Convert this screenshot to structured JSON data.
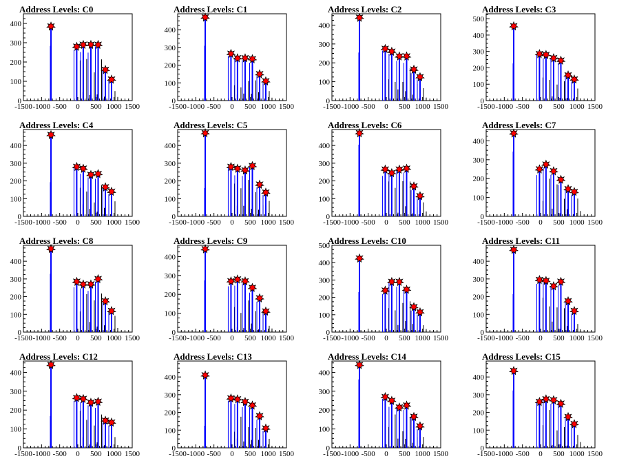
{
  "chart_data": [
    {
      "type": "bar",
      "title": "Address Levels: C0",
      "xlim": [
        -1500,
        1500
      ],
      "ylim": [
        0,
        450
      ],
      "yticks": [
        0,
        100,
        200,
        300,
        400
      ],
      "xticks": [
        "-1500",
        "-1000",
        "-500",
        "0",
        "500",
        "1000",
        "1500"
      ],
      "bar_color": "#0000ff",
      "marker_color": "#ff0000",
      "peaks": [
        {
          "x": -740,
          "y": 385
        },
        {
          "x": -30,
          "y": 280
        },
        {
          "x": 150,
          "y": 290
        },
        {
          "x": 360,
          "y": 290
        },
        {
          "x": 560,
          "y": 290
        },
        {
          "x": 760,
          "y": 160
        },
        {
          "x": 930,
          "y": 110
        }
      ]
    },
    {
      "type": "bar",
      "title": "Address Levels: C1",
      "xlim": [
        -1500,
        1500
      ],
      "ylim": [
        0,
        490
      ],
      "yticks": [
        0,
        100,
        200,
        300,
        400
      ],
      "xticks": [
        "-1500",
        "-1000",
        "-500",
        "0",
        "500",
        "1000",
        "1500"
      ],
      "bar_color": "#0000ff",
      "marker_color": "#ff0000",
      "peaks": [
        {
          "x": -740,
          "y": 470
        },
        {
          "x": -30,
          "y": 265
        },
        {
          "x": 150,
          "y": 240
        },
        {
          "x": 360,
          "y": 240
        },
        {
          "x": 560,
          "y": 235
        },
        {
          "x": 760,
          "y": 150
        },
        {
          "x": 930,
          "y": 110
        }
      ]
    },
    {
      "type": "bar",
      "title": "Address Levels: C2",
      "xlim": [
        -1500,
        1500
      ],
      "ylim": [
        0,
        460
      ],
      "yticks": [
        0,
        100,
        200,
        300,
        400
      ],
      "xticks": [
        "-1500",
        "-1000",
        "-500",
        "0",
        "500",
        "1000",
        "1500"
      ],
      "bar_color": "#0000ff",
      "marker_color": "#ff0000",
      "peaks": [
        {
          "x": -740,
          "y": 440
        },
        {
          "x": -30,
          "y": 275
        },
        {
          "x": 150,
          "y": 260
        },
        {
          "x": 360,
          "y": 235
        },
        {
          "x": 560,
          "y": 235
        },
        {
          "x": 760,
          "y": 165
        },
        {
          "x": 930,
          "y": 125
        }
      ]
    },
    {
      "type": "bar",
      "title": "Address Levels: C3",
      "xlim": [
        -1500,
        1500
      ],
      "ylim": [
        0,
        530
      ],
      "yticks": [
        0,
        100,
        200,
        300,
        400,
        500
      ],
      "xticks": [
        "-1500",
        "-1000",
        "-500",
        "0",
        "500",
        "1000",
        "1500"
      ],
      "bar_color": "#0000ff",
      "marker_color": "#ff0000",
      "peaks": [
        {
          "x": -740,
          "y": 455
        },
        {
          "x": -30,
          "y": 285
        },
        {
          "x": 150,
          "y": 280
        },
        {
          "x": 360,
          "y": 260
        },
        {
          "x": 560,
          "y": 245
        },
        {
          "x": 760,
          "y": 155
        },
        {
          "x": 930,
          "y": 130
        }
      ]
    },
    {
      "type": "bar",
      "title": "Address Levels: C4",
      "xlim": [
        -1500,
        1500
      ],
      "ylim": [
        0,
        490
      ],
      "yticks": [
        0,
        100,
        200,
        300,
        400
      ],
      "xticks": [
        "-1500",
        "-1000",
        "-500",
        "0",
        "500",
        "1000",
        "1500"
      ],
      "bar_color": "#0000ff",
      "marker_color": "#ff0000",
      "peaks": [
        {
          "x": -740,
          "y": 460
        },
        {
          "x": -30,
          "y": 280
        },
        {
          "x": 150,
          "y": 270
        },
        {
          "x": 360,
          "y": 235
        },
        {
          "x": 560,
          "y": 240
        },
        {
          "x": 760,
          "y": 165
        },
        {
          "x": 930,
          "y": 140
        }
      ]
    },
    {
      "type": "bar",
      "title": "Address Levels: C5",
      "xlim": [
        -1500,
        1500
      ],
      "ylim": [
        0,
        490
      ],
      "yticks": [
        0,
        100,
        200,
        300,
        400
      ],
      "xticks": [
        "-1500",
        "-1000",
        "-500",
        "0",
        "500",
        "1000",
        "1500"
      ],
      "bar_color": "#0000ff",
      "marker_color": "#ff0000",
      "peaks": [
        {
          "x": -740,
          "y": 470
        },
        {
          "x": -30,
          "y": 280
        },
        {
          "x": 150,
          "y": 270
        },
        {
          "x": 360,
          "y": 260
        },
        {
          "x": 560,
          "y": 285
        },
        {
          "x": 760,
          "y": 180
        },
        {
          "x": 930,
          "y": 135
        }
      ]
    },
    {
      "type": "bar",
      "title": "Address Levels: C6",
      "xlim": [
        -1500,
        1500
      ],
      "ylim": [
        0,
        490
      ],
      "yticks": [
        0,
        100,
        200,
        300,
        400
      ],
      "xticks": [
        "-1500",
        "-1000",
        "-500",
        "0",
        "500",
        "1000",
        "1500"
      ],
      "bar_color": "#0000ff",
      "marker_color": "#ff0000",
      "peaks": [
        {
          "x": -740,
          "y": 470
        },
        {
          "x": -30,
          "y": 265
        },
        {
          "x": 150,
          "y": 245
        },
        {
          "x": 360,
          "y": 265
        },
        {
          "x": 560,
          "y": 270
        },
        {
          "x": 760,
          "y": 170
        },
        {
          "x": 930,
          "y": 115
        }
      ]
    },
    {
      "type": "bar",
      "title": "Address Levels: C7",
      "xlim": [
        -1500,
        1500
      ],
      "ylim": [
        0,
        460
      ],
      "yticks": [
        0,
        100,
        200,
        300,
        400
      ],
      "xticks": [
        "-1500",
        "-1000",
        "-500",
        "0",
        "500",
        "1000",
        "1500"
      ],
      "bar_color": "#0000ff",
      "marker_color": "#ff0000",
      "peaks": [
        {
          "x": -740,
          "y": 440
        },
        {
          "x": -30,
          "y": 250
        },
        {
          "x": 150,
          "y": 275
        },
        {
          "x": 360,
          "y": 240
        },
        {
          "x": 560,
          "y": 195
        },
        {
          "x": 760,
          "y": 145
        },
        {
          "x": 930,
          "y": 130
        }
      ]
    },
    {
      "type": "bar",
      "title": "Address Levels: C8",
      "xlim": [
        -1500,
        1500
      ],
      "ylim": [
        0,
        490
      ],
      "yticks": [
        0,
        100,
        200,
        300,
        400
      ],
      "xticks": [
        "-1500",
        "-1000",
        "-500",
        "0",
        "500",
        "1000",
        "1500"
      ],
      "bar_color": "#0000ff",
      "marker_color": "#ff0000",
      "peaks": [
        {
          "x": -740,
          "y": 470
        },
        {
          "x": -30,
          "y": 285
        },
        {
          "x": 150,
          "y": 270
        },
        {
          "x": 360,
          "y": 270
        },
        {
          "x": 560,
          "y": 300
        },
        {
          "x": 760,
          "y": 175
        },
        {
          "x": 930,
          "y": 120
        }
      ]
    },
    {
      "type": "bar",
      "title": "Address Levels: C9",
      "xlim": [
        -1500,
        1500
      ],
      "ylim": [
        0,
        460
      ],
      "yticks": [
        0,
        100,
        200,
        300,
        400
      ],
      "xticks": [
        "-1500",
        "-1000",
        "-500",
        "0",
        "500",
        "1000",
        "1500"
      ],
      "bar_color": "#0000ff",
      "marker_color": "#ff0000",
      "peaks": [
        {
          "x": -740,
          "y": 440
        },
        {
          "x": -30,
          "y": 270
        },
        {
          "x": 150,
          "y": 280
        },
        {
          "x": 360,
          "y": 270
        },
        {
          "x": 560,
          "y": 235
        },
        {
          "x": 760,
          "y": 180
        },
        {
          "x": 930,
          "y": 110
        }
      ]
    },
    {
      "type": "bar",
      "title": "Address Levels: C10",
      "xlim": [
        -1500,
        1500
      ],
      "ylim": [
        0,
        500
      ],
      "yticks": [
        0,
        100,
        200,
        300,
        400,
        500
      ],
      "xticks": [
        "-1500",
        "-1000",
        "-500",
        "0",
        "500",
        "1000",
        "1500"
      ],
      "bar_color": "#0000ff",
      "marker_color": "#ff0000",
      "peaks": [
        {
          "x": -740,
          "y": 425
        },
        {
          "x": -30,
          "y": 240
        },
        {
          "x": 150,
          "y": 290
        },
        {
          "x": 360,
          "y": 290
        },
        {
          "x": 560,
          "y": 245
        },
        {
          "x": 760,
          "y": 145
        },
        {
          "x": 930,
          "y": 115
        }
      ]
    },
    {
      "type": "bar",
      "title": "Address Levels: C11",
      "xlim": [
        -1500,
        1500
      ],
      "ylim": [
        0,
        490
      ],
      "yticks": [
        0,
        100,
        200,
        300,
        400
      ],
      "xticks": [
        "-1500",
        "-1000",
        "-500",
        "0",
        "500",
        "1000",
        "1500"
      ],
      "bar_color": "#0000ff",
      "marker_color": "#ff0000",
      "peaks": [
        {
          "x": -740,
          "y": 465
        },
        {
          "x": -30,
          "y": 295
        },
        {
          "x": 150,
          "y": 290
        },
        {
          "x": 360,
          "y": 260
        },
        {
          "x": 560,
          "y": 285
        },
        {
          "x": 760,
          "y": 175
        },
        {
          "x": 930,
          "y": 120
        }
      ]
    },
    {
      "type": "bar",
      "title": "Address Levels: C12",
      "xlim": [
        -1500,
        1500
      ],
      "ylim": [
        0,
        460
      ],
      "yticks": [
        0,
        100,
        200,
        300,
        400
      ],
      "xticks": [
        "-1500",
        "-1000",
        "-500",
        "0",
        "500",
        "1000",
        "1500"
      ],
      "bar_color": "#0000ff",
      "marker_color": "#ff0000",
      "peaks": [
        {
          "x": -740,
          "y": 440
        },
        {
          "x": -30,
          "y": 265
        },
        {
          "x": 150,
          "y": 260
        },
        {
          "x": 360,
          "y": 240
        },
        {
          "x": 560,
          "y": 245
        },
        {
          "x": 760,
          "y": 145
        },
        {
          "x": 930,
          "y": 135
        }
      ]
    },
    {
      "type": "bar",
      "title": "Address Levels: C13",
      "xlim": [
        -1500,
        1500
      ],
      "ylim": [
        0,
        490
      ],
      "yticks": [
        0,
        100,
        200,
        300,
        400
      ],
      "xticks": [
        "-1500",
        "-1000",
        "-500",
        "0",
        "500",
        "1000",
        "1500"
      ],
      "bar_color": "#0000ff",
      "marker_color": "#ff0000",
      "peaks": [
        {
          "x": -740,
          "y": 410
        },
        {
          "x": -30,
          "y": 280
        },
        {
          "x": 150,
          "y": 275
        },
        {
          "x": 360,
          "y": 260
        },
        {
          "x": 560,
          "y": 240
        },
        {
          "x": 760,
          "y": 180
        },
        {
          "x": 930,
          "y": 110
        }
      ]
    },
    {
      "type": "bar",
      "title": "Address Levels: C14",
      "xlim": [
        -1500,
        1500
      ],
      "ylim": [
        0,
        460
      ],
      "yticks": [
        0,
        100,
        200,
        300,
        400
      ],
      "xticks": [
        "-1500",
        "-1000",
        "-500",
        "0",
        "500",
        "1000",
        "1500"
      ],
      "bar_color": "#0000ff",
      "marker_color": "#ff0000",
      "peaks": [
        {
          "x": -740,
          "y": 440
        },
        {
          "x": -30,
          "y": 270
        },
        {
          "x": 150,
          "y": 250
        },
        {
          "x": 360,
          "y": 215
        },
        {
          "x": 560,
          "y": 225
        },
        {
          "x": 760,
          "y": 165
        },
        {
          "x": 930,
          "y": 115
        }
      ]
    },
    {
      "type": "bar",
      "title": "Address Levels: C15",
      "xlim": [
        -1500,
        1500
      ],
      "ylim": [
        0,
        490
      ],
      "yticks": [
        0,
        100,
        200,
        300,
        400
      ],
      "xticks": [
        "-1500",
        "-1000",
        "-500",
        "0",
        "500",
        "1000",
        "1500"
      ],
      "bar_color": "#0000ff",
      "marker_color": "#ff0000",
      "peaks": [
        {
          "x": -740,
          "y": 435
        },
        {
          "x": -30,
          "y": 260
        },
        {
          "x": 150,
          "y": 275
        },
        {
          "x": 360,
          "y": 270
        },
        {
          "x": 560,
          "y": 250
        },
        {
          "x": 760,
          "y": 175
        },
        {
          "x": 930,
          "y": 135
        }
      ]
    }
  ]
}
